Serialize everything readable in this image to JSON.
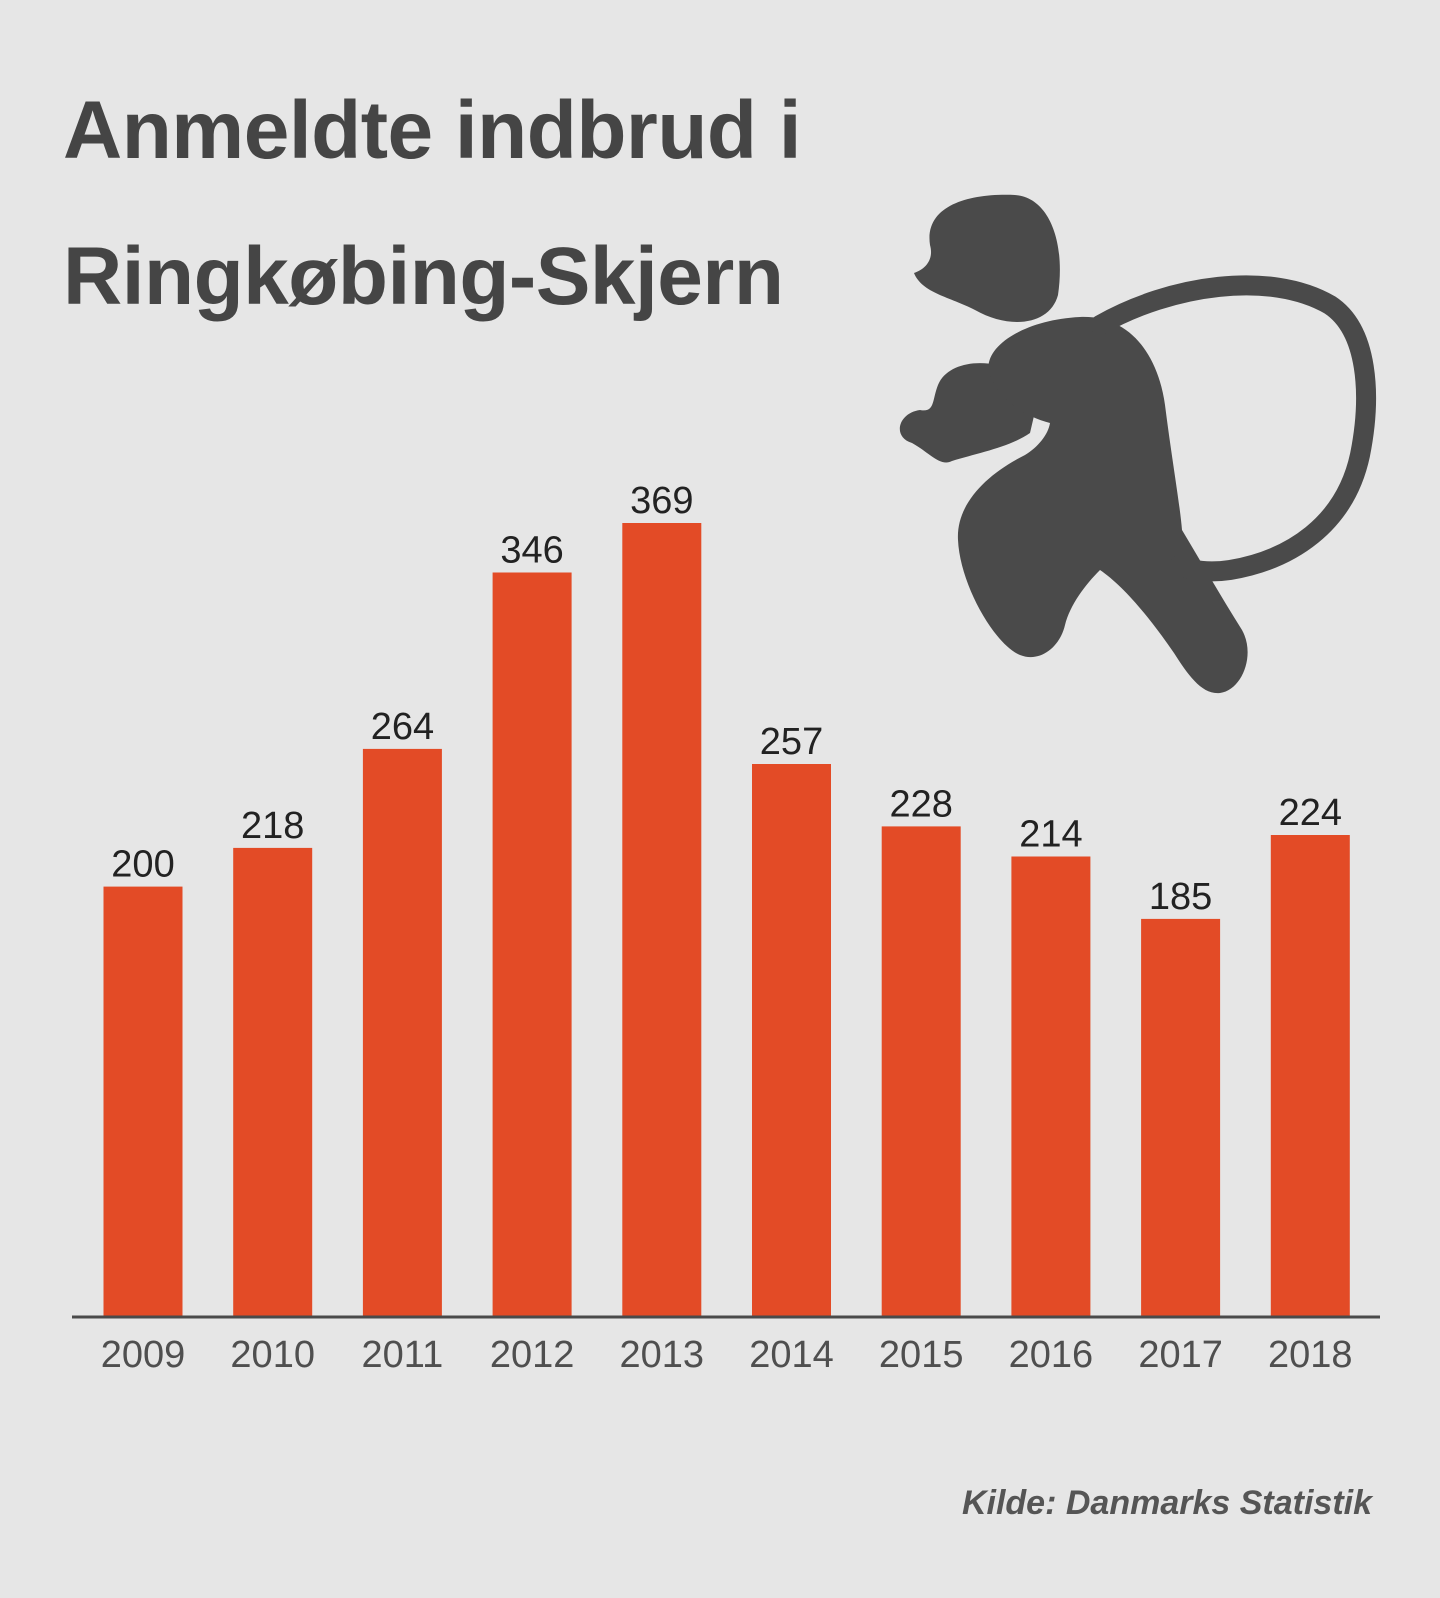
{
  "title": {
    "line1": "Anmeldte indbrud i",
    "line2": "Ringkøbing-Skjern"
  },
  "source": "Kilde: Danmarks Statistik",
  "illustration": {
    "icon": "burglar-with-sack-icon",
    "color": "#4a4a4a"
  },
  "chart_data": {
    "type": "bar",
    "title": "Anmeldte indbrud i Ringkøbing-Skjern",
    "categories": [
      "2009",
      "2010",
      "2011",
      "2012",
      "2013",
      "2014",
      "2015",
      "2016",
      "2017",
      "2018"
    ],
    "values": [
      200,
      218,
      264,
      346,
      369,
      257,
      228,
      214,
      185,
      224
    ],
    "data_labels": [
      "200",
      "218",
      "264",
      "346",
      "369",
      "257",
      "228",
      "214",
      "185",
      "224"
    ],
    "xlabel": "",
    "ylabel": "",
    "ylim": [
      0,
      369
    ],
    "grid": false,
    "legend": "none",
    "bar_color": "#e34b26",
    "axis_color": "#4a4a4a",
    "label_color": "#222222",
    "tick_color": "#4f4f4f"
  }
}
